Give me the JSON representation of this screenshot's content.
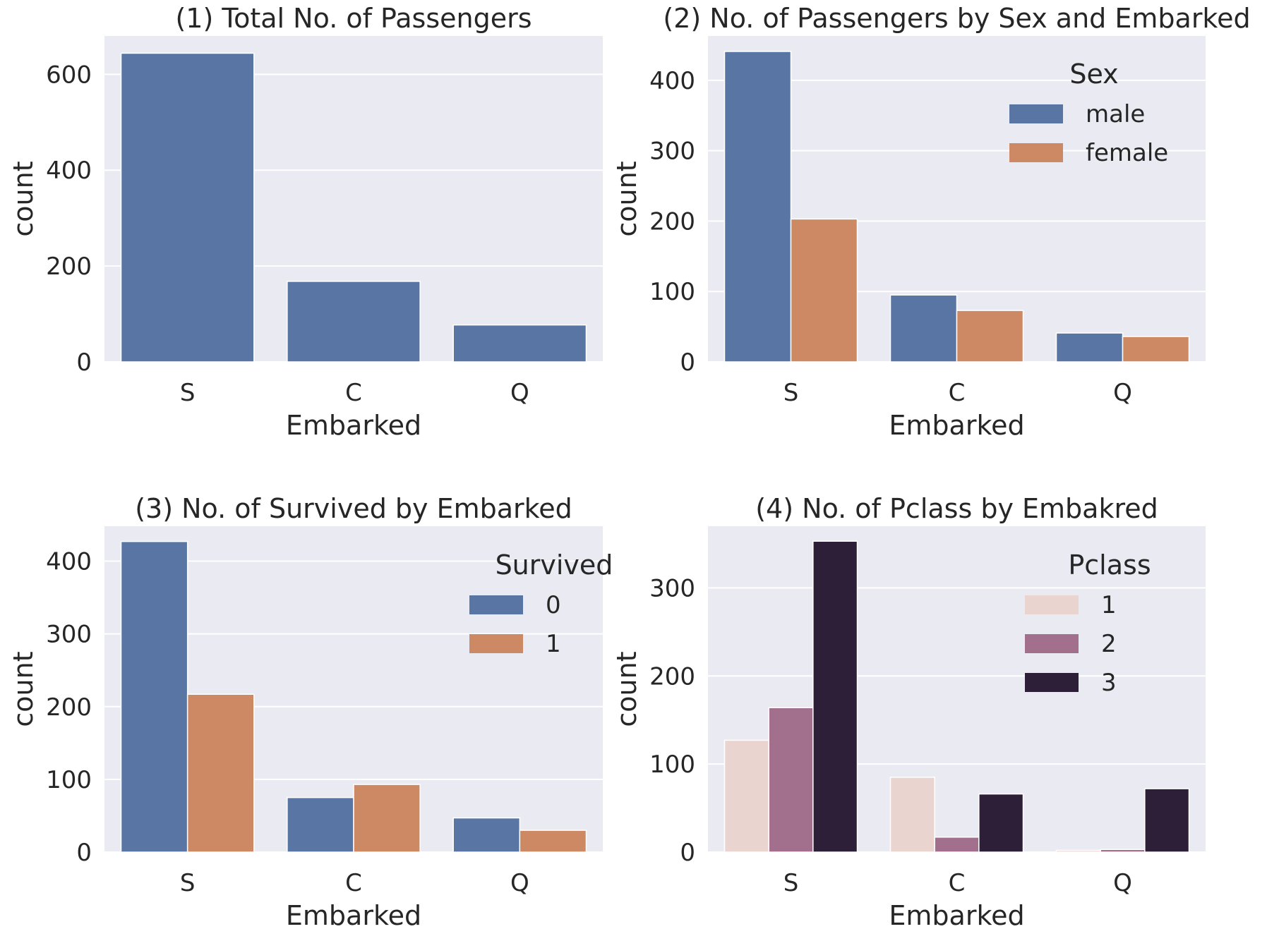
{
  "colors": {
    "axes_bg": "#EAEAF2",
    "grid": "#FFFFFF",
    "blue": "#5875A4",
    "orange": "#CC8963",
    "pclass1": "#EAD4CF",
    "pclass2": "#A2708C",
    "pclass3": "#2E1F39"
  },
  "chart_data": [
    {
      "type": "bar",
      "title": "(1) Total No. of Passengers",
      "xlabel": "Embarked",
      "ylabel": "count",
      "categories": [
        "S",
        "C",
        "Q"
      ],
      "series": [
        {
          "values": [
            644,
            168,
            77
          ],
          "color": "#5875A4"
        }
      ],
      "ylim": [
        0,
        680
      ],
      "yticks": [
        0,
        200,
        400,
        600
      ],
      "grid": true,
      "legend": null
    },
    {
      "type": "bar",
      "title": "(2) No. of Passengers by Sex and Embarked",
      "xlabel": "Embarked",
      "ylabel": "count",
      "categories": [
        "S",
        "C",
        "Q"
      ],
      "series": [
        {
          "name": "male",
          "values": [
            441,
            95,
            41
          ],
          "color": "#5875A4"
        },
        {
          "name": "female",
          "values": [
            203,
            73,
            36
          ],
          "color": "#CC8963"
        }
      ],
      "ylim": [
        0,
        463
      ],
      "yticks": [
        0,
        100,
        200,
        300,
        400
      ],
      "grid": true,
      "legend": {
        "title": "Sex",
        "placement": "top-right"
      }
    },
    {
      "type": "bar",
      "title": "(3) No. of Survived by Embarked",
      "xlabel": "Embarked",
      "ylabel": "count",
      "categories": [
        "S",
        "C",
        "Q"
      ],
      "series": [
        {
          "name": "0",
          "values": [
            427,
            75,
            47
          ],
          "color": "#5875A4"
        },
        {
          "name": "1",
          "values": [
            217,
            93,
            30
          ],
          "color": "#CC8963"
        }
      ],
      "ylim": [
        0,
        448
      ],
      "yticks": [
        0,
        100,
        200,
        300,
        400
      ],
      "grid": true,
      "legend": {
        "title": "Survived",
        "placement": "top-right"
      }
    },
    {
      "type": "bar",
      "title": "(4) No. of Pclass by Embakred",
      "xlabel": "Embarked",
      "ylabel": "count",
      "categories": [
        "S",
        "C",
        "Q"
      ],
      "series": [
        {
          "name": "1",
          "values": [
            127,
            85,
            2
          ],
          "color": "#EAD4CF"
        },
        {
          "name": "2",
          "values": [
            164,
            17,
            3
          ],
          "color": "#A2708C"
        },
        {
          "name": "3",
          "values": [
            353,
            66,
            72
          ],
          "color": "#2E1F39"
        }
      ],
      "ylim": [
        0,
        370
      ],
      "yticks": [
        0,
        100,
        200,
        300
      ],
      "grid": true,
      "legend": {
        "title": "Pclass",
        "placement": "top-right"
      }
    }
  ]
}
